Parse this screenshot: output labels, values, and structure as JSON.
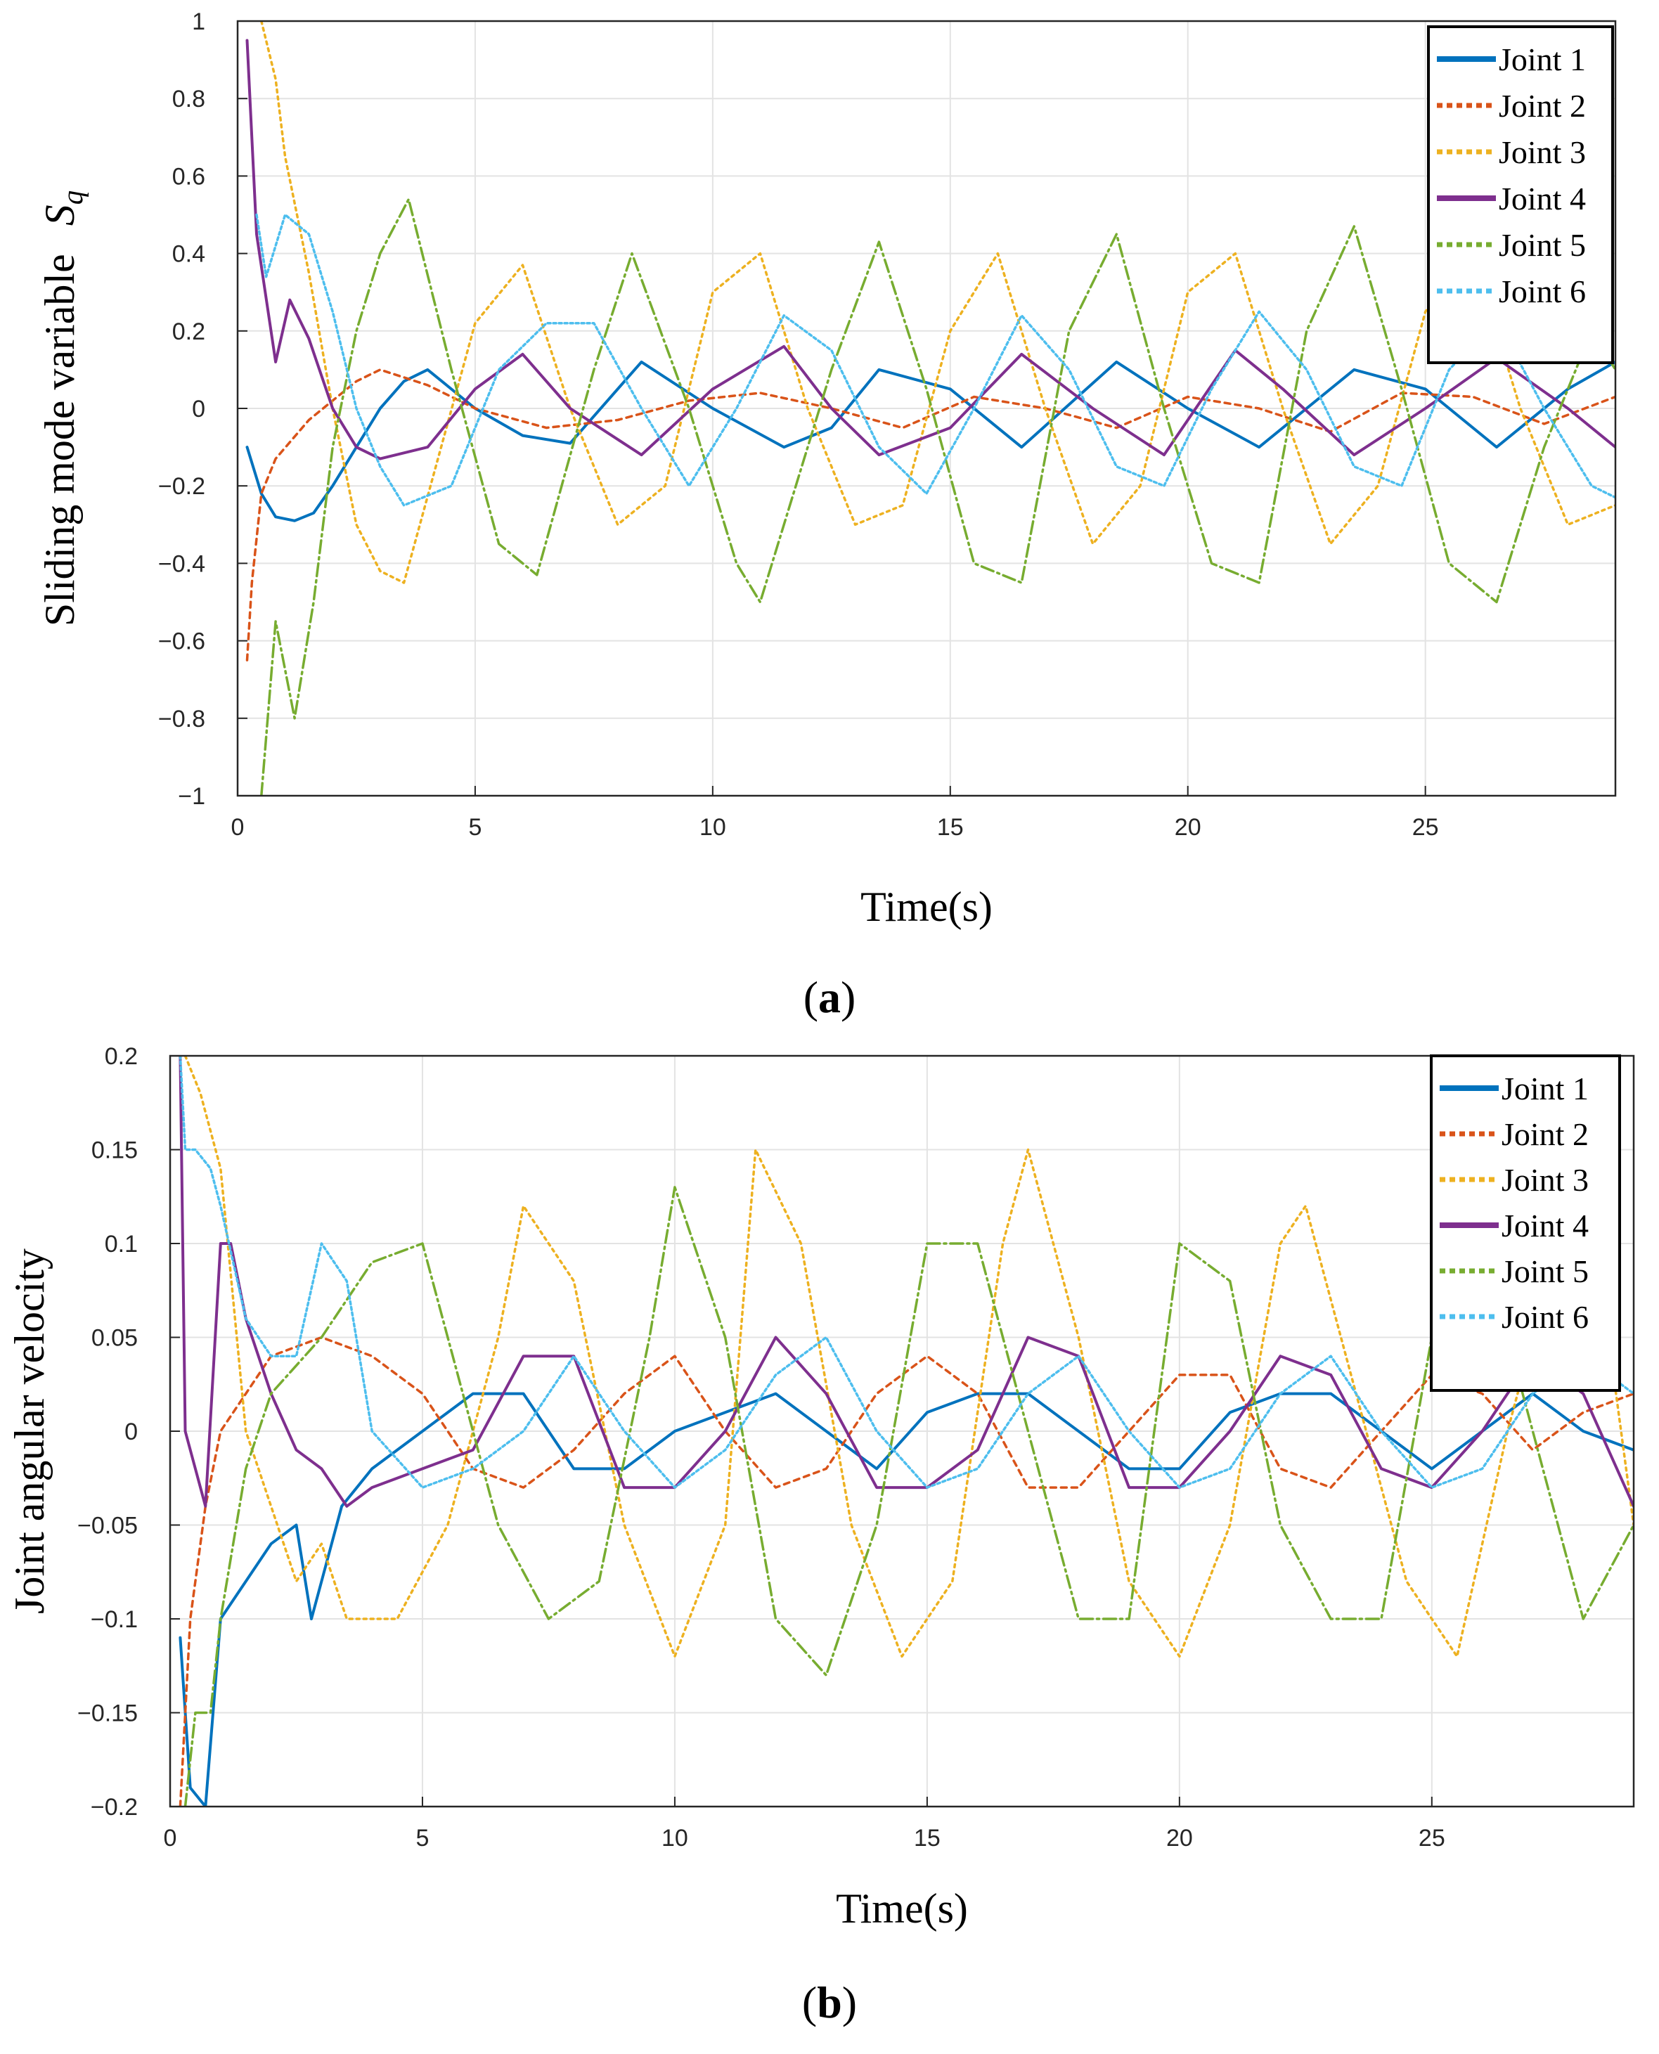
{
  "chart_data": [
    {
      "type": "line",
      "panel_label": "a",
      "title": "",
      "xlabel": "Time(s)",
      "ylabel": "Sliding mode variable",
      "ylabel_symbol": "S",
      "ylabel_subscript": "q",
      "xlim": [
        0,
        29
      ],
      "ylim": [
        -1,
        1
      ],
      "xticks": [
        0,
        5,
        10,
        15,
        20,
        25
      ],
      "xtick_labels": [
        "0",
        "5",
        "10",
        "15",
        "20",
        "25"
      ],
      "yticks": [
        -1,
        -0.8,
        -0.6,
        -0.4,
        -0.2,
        0,
        0.2,
        0.4,
        0.6,
        0.8,
        1
      ],
      "ytick_labels": [
        "−1",
        "−0.8",
        "−0.6",
        "−0.4",
        "−0.2",
        "0",
        "0.2",
        "0.4",
        "0.6",
        "0.8",
        "1"
      ],
      "grid": true,
      "legend_position": "top-right",
      "series": [
        {
          "name": "Joint 1",
          "color": "#0072bd",
          "x": [
            0.2,
            0.5,
            0.8,
            1.2,
            1.6,
            2.0,
            2.5,
            3.0,
            3.5,
            4.0,
            5.0,
            6.0,
            7.0,
            8.5,
            10.0,
            11.5,
            12.5,
            13.5,
            15.0,
            16.5,
            18.5,
            20.0,
            21.5,
            23.5,
            25.0,
            26.5,
            28.0,
            29.0
          ],
          "values": [
            -0.1,
            -0.22,
            -0.28,
            -0.29,
            -0.27,
            -0.2,
            -0.1,
            0.0,
            0.07,
            0.1,
            0.0,
            -0.07,
            -0.09,
            0.12,
            0.0,
            -0.1,
            -0.05,
            0.1,
            0.05,
            -0.1,
            0.12,
            0.0,
            -0.1,
            0.1,
            0.05,
            -0.1,
            0.05,
            0.12
          ]
        },
        {
          "name": "Joint 2",
          "color": "#d95319",
          "x": [
            0.2,
            0.3,
            0.5,
            0.8,
            1.5,
            2.5,
            3.0,
            4.0,
            5.0,
            6.5,
            8.0,
            9.5,
            11.0,
            12.5,
            14.0,
            15.5,
            17.0,
            18.5,
            20.0,
            21.5,
            23.0,
            24.5,
            26.0,
            27.5,
            29.0
          ],
          "values": [
            -0.65,
            -0.45,
            -0.22,
            -0.13,
            -0.03,
            0.07,
            0.1,
            0.06,
            0.0,
            -0.05,
            -0.03,
            0.02,
            0.04,
            0.0,
            -0.05,
            0.03,
            0.0,
            -0.05,
            0.03,
            0.0,
            -0.06,
            0.04,
            0.03,
            -0.04,
            0.03
          ]
        },
        {
          "name": "Joint 3",
          "color": "#edb120",
          "x": [
            0.5,
            0.8,
            1.0,
            1.5,
            2.0,
            2.5,
            3.0,
            3.5,
            5.0,
            6.0,
            7.0,
            8.0,
            9.0,
            10.0,
            11.0,
            12.0,
            13.0,
            14.0,
            15.0,
            16.0,
            17.0,
            18.0,
            19.0,
            20.0,
            21.0,
            22.0,
            23.0,
            24.0,
            25.0,
            26.0,
            27.0,
            28.0,
            29.0
          ],
          "values": [
            1.0,
            0.85,
            0.65,
            0.35,
            0.0,
            -0.3,
            -0.42,
            -0.45,
            0.22,
            0.37,
            0.0,
            -0.3,
            -0.2,
            0.3,
            0.4,
            0.0,
            -0.3,
            -0.25,
            0.2,
            0.4,
            0.0,
            -0.35,
            -0.2,
            0.3,
            0.4,
            0.0,
            -0.35,
            -0.2,
            0.25,
            0.4,
            0.0,
            -0.3,
            -0.25
          ]
        },
        {
          "name": "Joint 4",
          "color": "#7e2f8e",
          "x": [
            0.2,
            0.4,
            0.8,
            1.1,
            1.5,
            2.0,
            2.5,
            3.0,
            4.0,
            5.0,
            6.0,
            7.0,
            8.5,
            10.0,
            11.5,
            12.5,
            13.5,
            15.0,
            16.5,
            18.0,
            19.5,
            21.0,
            22.0,
            23.5,
            25.0,
            26.5,
            28.0,
            29.0
          ],
          "values": [
            0.95,
            0.45,
            0.12,
            0.28,
            0.18,
            0.0,
            -0.1,
            -0.13,
            -0.1,
            0.05,
            0.14,
            0.0,
            -0.12,
            0.05,
            0.16,
            0.0,
            -0.12,
            -0.05,
            0.14,
            0.0,
            -0.12,
            0.15,
            0.05,
            -0.12,
            0.0,
            0.13,
            0.0,
            -0.1
          ]
        },
        {
          "name": "Joint 5",
          "color": "#77ac30",
          "x": [
            0.5,
            0.8,
            1.2,
            1.6,
            2.0,
            2.5,
            3.0,
            3.6,
            4.5,
            5.5,
            6.3,
            7.5,
            8.3,
            9.5,
            10.5,
            11.0,
            12.5,
            13.5,
            14.5,
            15.5,
            16.5,
            17.5,
            18.5,
            19.5,
            20.5,
            21.5,
            22.5,
            23.5,
            24.5,
            25.5,
            26.5,
            27.5,
            28.5,
            29.0
          ],
          "values": [
            -1.0,
            -0.55,
            -0.8,
            -0.5,
            -0.1,
            0.2,
            0.4,
            0.54,
            0.1,
            -0.35,
            -0.43,
            0.1,
            0.4,
            0.0,
            -0.4,
            -0.5,
            0.1,
            0.43,
            0.05,
            -0.4,
            -0.45,
            0.2,
            0.45,
            0.0,
            -0.4,
            -0.45,
            0.2,
            0.47,
            0.05,
            -0.4,
            -0.5,
            -0.1,
            0.2,
            0.1
          ]
        },
        {
          "name": "Joint 6",
          "color": "#4dbeee",
          "x": [
            0.4,
            0.6,
            1.0,
            1.5,
            2.0,
            2.5,
            3.0,
            3.5,
            4.5,
            5.5,
            6.5,
            7.5,
            8.5,
            9.5,
            10.5,
            11.5,
            12.5,
            13.5,
            14.5,
            15.5,
            16.5,
            17.5,
            18.5,
            19.5,
            20.5,
            21.5,
            22.5,
            23.5,
            24.5,
            25.5,
            26.5,
            27.5,
            28.5,
            29.0
          ],
          "values": [
            0.5,
            0.34,
            0.5,
            0.45,
            0.25,
            0.0,
            -0.15,
            -0.25,
            -0.2,
            0.1,
            0.22,
            0.22,
            0.0,
            -0.2,
            0.0,
            0.24,
            0.15,
            -0.1,
            -0.22,
            0.0,
            0.24,
            0.1,
            -0.15,
            -0.2,
            0.05,
            0.25,
            0.1,
            -0.15,
            -0.2,
            0.1,
            0.23,
            0.0,
            -0.2,
            -0.23
          ]
        }
      ]
    },
    {
      "type": "line",
      "panel_label": "b",
      "title": "",
      "xlabel": "Time(s)",
      "ylabel": "Joint angular velocity",
      "xlim": [
        0,
        29
      ],
      "ylim": [
        -0.2,
        0.2
      ],
      "xticks": [
        0,
        5,
        10,
        15,
        20,
        25
      ],
      "xtick_labels": [
        "0",
        "5",
        "10",
        "15",
        "20",
        "25"
      ],
      "yticks": [
        -0.2,
        -0.15,
        -0.1,
        -0.05,
        0,
        0.05,
        0.1,
        0.15,
        0.2
      ],
      "ytick_labels": [
        "−0.2",
        "−0.15",
        "−0.1",
        "−0.05",
        "0",
        "0.05",
        "0.1",
        "0.15",
        "0.2"
      ],
      "grid": true,
      "legend_position": "top-right",
      "series": [
        {
          "name": "Joint 1",
          "color": "#0072bd",
          "x": [
            0.2,
            0.4,
            0.7,
            1.0,
            1.5,
            2.0,
            2.5,
            2.8,
            3.0,
            3.4,
            4.0,
            5.0,
            6.0,
            7.0,
            8.0,
            9.0,
            10.0,
            11.0,
            12.0,
            13.0,
            14.0,
            15.0,
            16.0,
            17.0,
            18.0,
            19.0,
            20.0,
            21.0,
            22.0,
            23.0,
            24.0,
            25.0,
            26.0,
            27.0,
            28.0,
            29.0
          ],
          "values": [
            -0.11,
            -0.19,
            -0.2,
            -0.1,
            -0.08,
            -0.06,
            -0.05,
            -0.1,
            -0.08,
            -0.04,
            -0.02,
            0.0,
            0.02,
            0.02,
            -0.02,
            -0.02,
            0.0,
            0.01,
            0.02,
            0.0,
            -0.02,
            0.01,
            0.02,
            0.02,
            0.0,
            -0.02,
            -0.02,
            0.01,
            0.02,
            0.02,
            0.0,
            -0.02,
            0.0,
            0.02,
            0.0,
            -0.01
          ]
        },
        {
          "name": "Joint 2",
          "color": "#d95319",
          "x": [
            0.2,
            0.4,
            0.7,
            1.0,
            1.5,
            2.0,
            3.0,
            4.0,
            5.0,
            6.0,
            7.0,
            8.0,
            9.0,
            10.0,
            11.0,
            12.0,
            13.0,
            14.0,
            15.0,
            16.0,
            17.0,
            18.0,
            19.0,
            20.0,
            21.0,
            22.0,
            23.0,
            24.0,
            25.0,
            26.0,
            27.0,
            28.0,
            29.0
          ],
          "values": [
            -0.2,
            -0.1,
            -0.04,
            0.0,
            0.02,
            0.04,
            0.05,
            0.04,
            0.02,
            -0.02,
            -0.03,
            -0.01,
            0.02,
            0.04,
            0.0,
            -0.03,
            -0.02,
            0.02,
            0.04,
            0.02,
            -0.03,
            -0.03,
            0.0,
            0.03,
            0.03,
            -0.02,
            -0.03,
            0.0,
            0.03,
            0.02,
            -0.01,
            0.01,
            0.02
          ]
        },
        {
          "name": "Joint 3",
          "color": "#edb120",
          "x": [
            0.3,
            0.6,
            1.0,
            1.5,
            2.0,
            2.5,
            3.0,
            3.5,
            4.5,
            5.5,
            6.5,
            7.0,
            8.0,
            9.0,
            10.0,
            11.0,
            11.6,
            12.5,
            13.5,
            14.5,
            15.5,
            16.5,
            17.0,
            18.0,
            19.0,
            20.0,
            21.0,
            22.0,
            22.5,
            23.5,
            24.5,
            25.5,
            26.5,
            27.5,
            28.5,
            29.0
          ],
          "values": [
            0.2,
            0.18,
            0.14,
            0.0,
            -0.04,
            -0.08,
            -0.06,
            -0.1,
            -0.1,
            -0.05,
            0.05,
            0.12,
            0.08,
            -0.05,
            -0.12,
            -0.05,
            0.15,
            0.1,
            -0.05,
            -0.12,
            -0.08,
            0.1,
            0.15,
            0.05,
            -0.08,
            -0.12,
            -0.05,
            0.1,
            0.12,
            0.02,
            -0.08,
            -0.12,
            0.0,
            0.1,
            0.05,
            -0.05
          ]
        },
        {
          "name": "Joint 4",
          "color": "#7e2f8e",
          "x": [
            0.2,
            0.3,
            0.5,
            0.7,
            1.0,
            1.2,
            1.5,
            2.0,
            2.5,
            3.0,
            3.5,
            4.0,
            5.0,
            6.0,
            7.0,
            8.0,
            9.0,
            10.0,
            11.0,
            12.0,
            13.0,
            14.0,
            15.0,
            16.0,
            17.0,
            18.0,
            19.0,
            20.0,
            21.0,
            22.0,
            23.0,
            24.0,
            25.0,
            26.0,
            27.0,
            28.0,
            29.0
          ],
          "values": [
            0.2,
            0.0,
            -0.02,
            -0.04,
            0.1,
            0.1,
            0.06,
            0.02,
            -0.01,
            -0.02,
            -0.04,
            -0.03,
            -0.02,
            -0.01,
            0.04,
            0.04,
            -0.03,
            -0.03,
            0.0,
            0.05,
            0.02,
            -0.03,
            -0.03,
            -0.01,
            0.05,
            0.04,
            -0.03,
            -0.03,
            0.0,
            0.04,
            0.03,
            -0.02,
            -0.03,
            0.0,
            0.04,
            0.02,
            -0.04
          ]
        },
        {
          "name": "Joint 5",
          "color": "#77ac30",
          "x": [
            0.3,
            0.5,
            0.8,
            1.0,
            1.5,
            2.0,
            3.0,
            4.0,
            5.0,
            5.5,
            6.5,
            7.5,
            8.5,
            9.5,
            10.0,
            11.0,
            12.0,
            13.0,
            14.0,
            15.0,
            16.0,
            17.0,
            18.0,
            19.0,
            20.0,
            21.0,
            22.0,
            23.0,
            24.0,
            25.0,
            26.0,
            27.0,
            28.0,
            29.0
          ],
          "values": [
            -0.2,
            -0.15,
            -0.15,
            -0.1,
            -0.02,
            0.02,
            0.05,
            0.09,
            0.1,
            0.05,
            -0.05,
            -0.1,
            -0.08,
            0.05,
            0.13,
            0.05,
            -0.1,
            -0.13,
            -0.05,
            0.1,
            0.1,
            0.0,
            -0.1,
            -0.1,
            0.1,
            0.08,
            -0.05,
            -0.1,
            -0.1,
            0.05,
            0.1,
            0.0,
            -0.1,
            -0.05
          ]
        },
        {
          "name": "Joint 6",
          "color": "#4dbeee",
          "x": [
            0.2,
            0.3,
            0.5,
            0.8,
            1.0,
            1.5,
            2.0,
            2.5,
            3.0,
            3.5,
            4.0,
            5.0,
            6.0,
            7.0,
            8.0,
            9.0,
            10.0,
            11.0,
            12.0,
            13.0,
            14.0,
            15.0,
            16.0,
            17.0,
            18.0,
            19.0,
            20.0,
            21.0,
            22.0,
            23.0,
            24.0,
            25.0,
            26.0,
            27.0,
            28.0,
            29.0
          ],
          "values": [
            0.2,
            0.15,
            0.15,
            0.14,
            0.12,
            0.06,
            0.04,
            0.04,
            0.1,
            0.08,
            0.0,
            -0.03,
            -0.02,
            0.0,
            0.04,
            0.0,
            -0.03,
            -0.01,
            0.03,
            0.05,
            0.0,
            -0.03,
            -0.02,
            0.02,
            0.04,
            0.0,
            -0.03,
            -0.02,
            0.02,
            0.04,
            0.0,
            -0.03,
            -0.02,
            0.02,
            0.04,
            0.02
          ]
        }
      ]
    }
  ]
}
